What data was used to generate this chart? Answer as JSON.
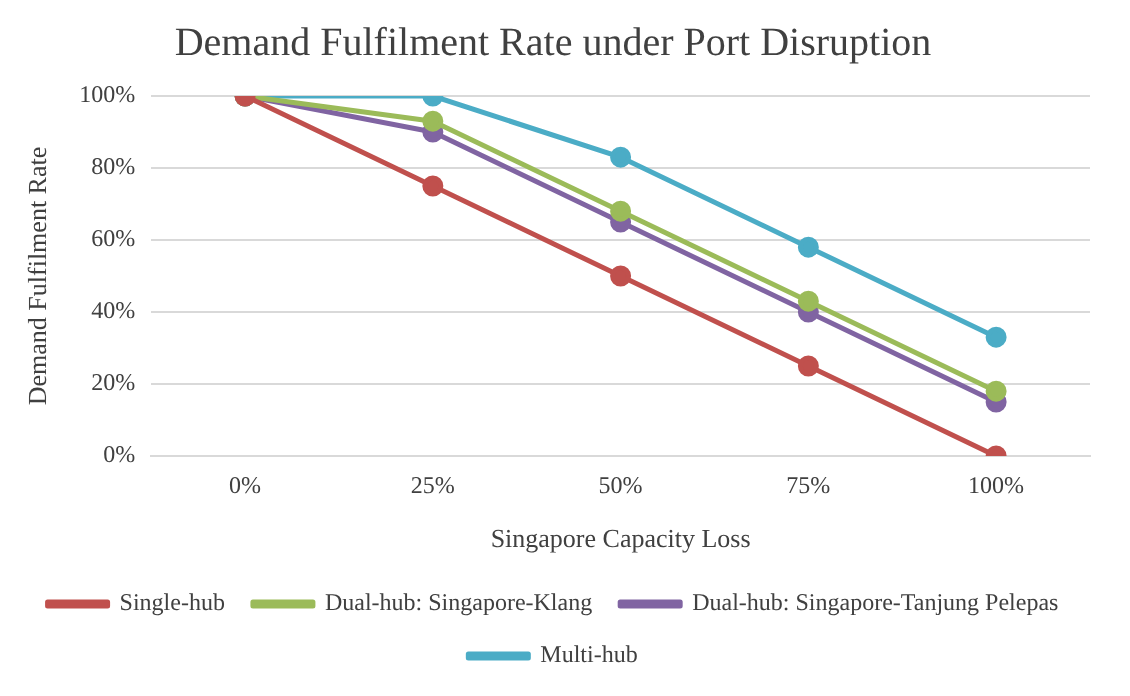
{
  "chart_data": {
    "type": "line",
    "title": "Demand Fulfilment Rate under Port Disruption",
    "xlabel": "Singapore Capacity Loss",
    "ylabel": "Demand Fulfilment Rate",
    "categories": [
      "0%",
      "25%",
      "50%",
      "75%",
      "100%"
    ],
    "series": [
      {
        "name": "Single-hub",
        "color": "#c0504d",
        "values": [
          100,
          75,
          50,
          25,
          0
        ]
      },
      {
        "name": "Dual-hub: Singapore-Klang",
        "color": "#9bbb59",
        "values": [
          100,
          93,
          68,
          43,
          18
        ]
      },
      {
        "name": "Dual-hub: Singapore-Tanjung Pelepas",
        "color": "#8064a2",
        "values": [
          100,
          90,
          65,
          40,
          15
        ]
      },
      {
        "name": "Multi-hub",
        "color": "#4bacc6",
        "values": [
          100,
          100,
          83,
          58,
          33
        ]
      }
    ],
    "ylim": [
      0,
      100
    ],
    "yticks": [
      {
        "value": 0,
        "label": "0%"
      },
      {
        "value": 20,
        "label": "20%"
      },
      {
        "value": 40,
        "label": "40%"
      },
      {
        "value": 60,
        "label": "60%"
      },
      {
        "value": 80,
        "label": "80%"
      },
      {
        "value": 100,
        "label": "100%"
      }
    ],
    "grid": "y",
    "legend": "bottom",
    "marker": "circle",
    "line_style": "solid"
  }
}
